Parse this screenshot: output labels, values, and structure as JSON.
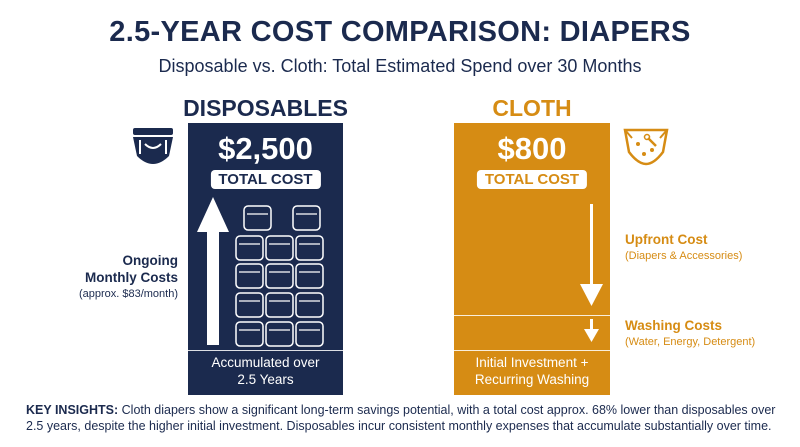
{
  "title": "2.5-YEAR COST COMPARISON: DIAPERS",
  "subtitle": "Disposable vs. Cloth: Total Estimated Spend over 30 Months",
  "colors": {
    "navy": "#1b2a4e",
    "gold": "#d68c14",
    "white": "#ffffff"
  },
  "disposables": {
    "heading": "DISPOSABLES",
    "price": "$2,500",
    "total_label": "TOTAL COST",
    "footer_line1": "Accumulated over",
    "footer_line2": "2.5 Years",
    "side_title_line1": "Ongoing",
    "side_title_line2": "Monthly Costs",
    "side_note": "(approx. $83/month)",
    "icon": "disposable-diaper-icon"
  },
  "cloth": {
    "heading": "CLOTH",
    "price": "$800",
    "total_label": "TOTAL COST",
    "footer_line1": "Initial Investment +",
    "footer_line2": "Recurring Washing",
    "upfront_title": "Upfront Cost",
    "upfront_note": "(Diapers & Accessories)",
    "washing_title": "Washing Costs",
    "washing_note": "(Water, Energy, Detergent)",
    "icon": "cloth-diaper-icon"
  },
  "insights": {
    "label": "KEY INSIGHTS:",
    "text": "Cloth diapers show a significant long-term savings potential, with a total cost approx. 68% lower than disposables over 2.5 years, despite the higher initial investment. Disposables incur consistent monthly expenses that accumulate substantially over time."
  },
  "chart_data": {
    "type": "bar",
    "categories": [
      "DISPOSABLES",
      "CLOTH"
    ],
    "values": [
      2500,
      800
    ],
    "title": "2.5-YEAR COST COMPARISON: DIAPERS",
    "subtitle": "Disposable vs. Cloth: Total Estimated Spend over 30 Months",
    "data_labels": [
      "$2,500",
      "$800"
    ],
    "annotations": [
      "Ongoing Monthly Costs (approx. $83/month)",
      "Upfront Cost (Diapers & Accessories)",
      "Washing Costs (Water, Energy, Detergent)"
    ],
    "colors": [
      "#1b2a4e",
      "#d68c14"
    ]
  }
}
